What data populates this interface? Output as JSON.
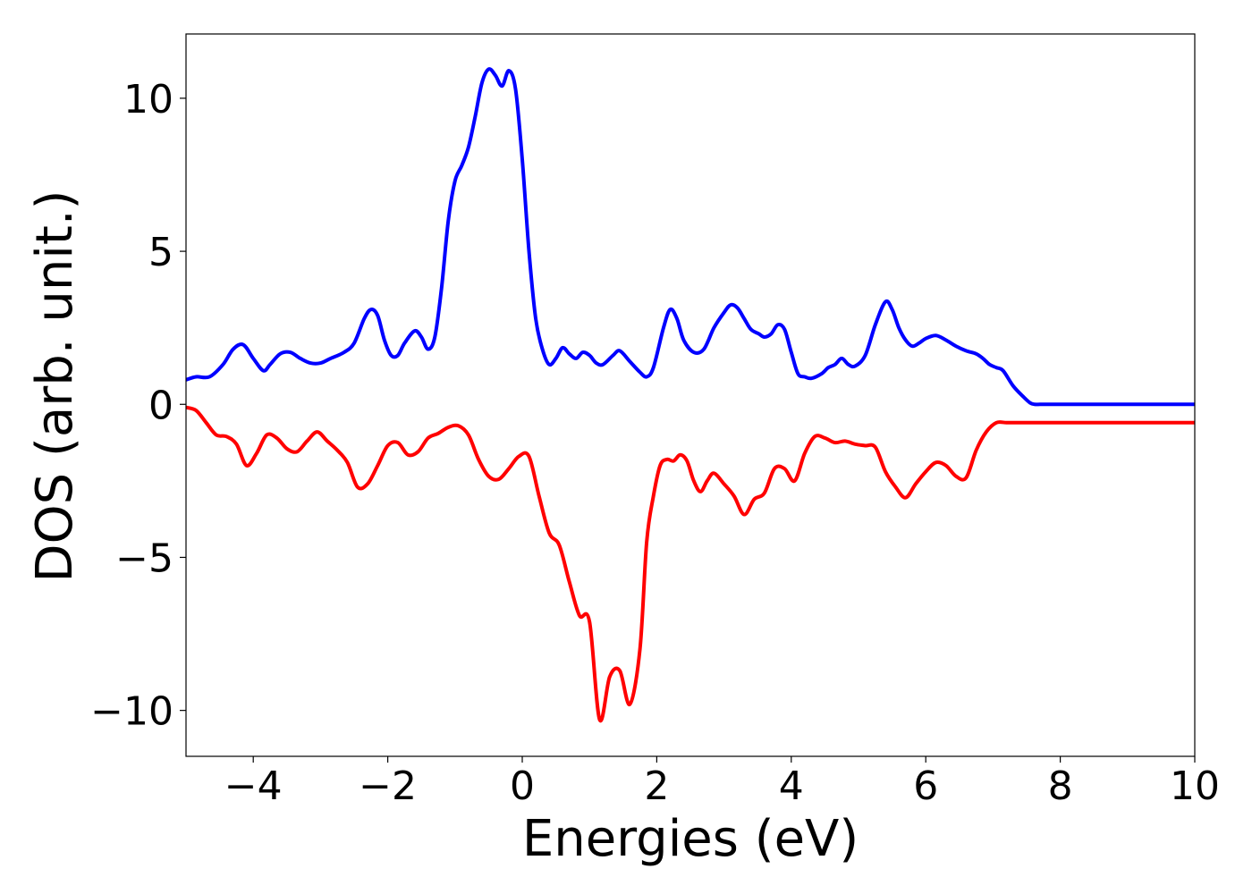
{
  "chart_data": {
    "type": "line",
    "title": "",
    "xlabel": "Energies (eV)",
    "ylabel": "DOS (arb. unit.)",
    "xlim": [
      -5,
      10
    ],
    "ylim": [
      -11.5,
      12.1
    ],
    "grid": false,
    "legend": "none",
    "xticks": [
      -4,
      -2,
      0,
      2,
      4,
      6,
      8,
      10
    ],
    "xtick_labels": [
      "−4",
      "−2",
      "0",
      "2",
      "4",
      "6",
      "8",
      "10"
    ],
    "yticks": [
      -10,
      -5,
      0,
      5,
      10
    ],
    "ytick_labels": [
      "−10",
      "−5",
      "0",
      "5",
      "10"
    ],
    "series": [
      {
        "color": "#0000ff",
        "x": [
          -5.0,
          -4.85,
          -4.65,
          -4.45,
          -4.3,
          -4.15,
          -4.0,
          -3.85,
          -3.75,
          -3.6,
          -3.45,
          -3.3,
          -3.15,
          -3.0,
          -2.85,
          -2.65,
          -2.5,
          -2.35,
          -2.25,
          -2.15,
          -2.05,
          -1.95,
          -1.85,
          -1.75,
          -1.6,
          -1.5,
          -1.4,
          -1.3,
          -1.2,
          -1.1,
          -1.0,
          -0.9,
          -0.8,
          -0.7,
          -0.6,
          -0.5,
          -0.4,
          -0.3,
          -0.2,
          -0.1,
          0.0,
          0.1,
          0.2,
          0.3,
          0.4,
          0.5,
          0.6,
          0.7,
          0.8,
          0.9,
          1.0,
          1.1,
          1.2,
          1.35,
          1.45,
          1.6,
          1.75,
          1.85,
          1.95,
          2.1,
          2.2,
          2.3,
          2.4,
          2.55,
          2.7,
          2.85,
          3.0,
          3.1,
          3.2,
          3.3,
          3.4,
          3.52,
          3.6,
          3.7,
          3.8,
          3.9,
          4.0,
          4.1,
          4.2,
          4.3,
          4.45,
          4.55,
          4.65,
          4.75,
          4.85,
          4.95,
          5.1,
          5.25,
          5.4,
          5.5,
          5.6,
          5.7,
          5.8,
          5.9,
          6.0,
          6.15,
          6.3,
          6.45,
          6.6,
          6.75,
          6.85,
          6.95,
          7.05,
          7.15,
          7.3,
          7.45,
          7.55,
          7.62,
          7.7,
          7.8,
          7.9,
          8.0,
          8.1,
          8.25,
          8.4,
          8.55,
          8.7,
          8.85,
          9.0,
          9.15,
          9.3,
          9.45,
          9.6,
          9.75,
          9.9,
          10.0
        ],
        "y": [
          0.8,
          0.9,
          0.9,
          1.3,
          1.8,
          1.95,
          1.5,
          1.1,
          1.3,
          1.65,
          1.7,
          1.5,
          1.35,
          1.35,
          1.5,
          1.7,
          2.0,
          2.8,
          3.1,
          2.9,
          2.1,
          1.6,
          1.6,
          2.0,
          2.4,
          2.2,
          1.8,
          2.2,
          3.8,
          6.0,
          7.3,
          7.8,
          8.4,
          9.4,
          10.5,
          10.95,
          10.75,
          10.4,
          10.9,
          10.3,
          8.0,
          5.0,
          2.8,
          1.8,
          1.3,
          1.5,
          1.85,
          1.65,
          1.5,
          1.7,
          1.6,
          1.35,
          1.3,
          1.6,
          1.75,
          1.4,
          1.05,
          0.9,
          1.2,
          2.5,
          3.1,
          2.8,
          2.1,
          1.7,
          1.8,
          2.5,
          3.0,
          3.25,
          3.15,
          2.8,
          2.45,
          2.3,
          2.2,
          2.3,
          2.6,
          2.45,
          1.7,
          1.0,
          0.9,
          0.85,
          1.0,
          1.2,
          1.3,
          1.5,
          1.3,
          1.25,
          1.6,
          2.6,
          3.35,
          3.1,
          2.5,
          2.1,
          1.9,
          2.0,
          2.15,
          2.25,
          2.1,
          1.9,
          1.75,
          1.65,
          1.5,
          1.3,
          1.2,
          1.1,
          0.6,
          0.25,
          0.05,
          0.0,
          0.0,
          0.0,
          0.0,
          0.0,
          0.0,
          0.0,
          0.0,
          0.0,
          0.0,
          0.0,
          0.0,
          0.0,
          0.0,
          0.0,
          0.0,
          0.0,
          0.0,
          0.0
        ]
      },
      {
        "color": "#ff0000",
        "x": [
          -5.0,
          -4.85,
          -4.7,
          -4.55,
          -4.4,
          -4.25,
          -4.1,
          -3.95,
          -3.8,
          -3.65,
          -3.5,
          -3.35,
          -3.2,
          -3.05,
          -2.9,
          -2.75,
          -2.6,
          -2.45,
          -2.3,
          -2.15,
          -2.0,
          -1.85,
          -1.7,
          -1.55,
          -1.4,
          -1.25,
          -1.1,
          -0.95,
          -0.8,
          -0.65,
          -0.5,
          -0.35,
          -0.2,
          -0.05,
          0.1,
          0.25,
          0.4,
          0.55,
          0.7,
          0.85,
          1.0,
          1.15,
          1.3,
          1.45,
          1.6,
          1.75,
          1.85,
          1.95,
          2.05,
          2.15,
          2.25,
          2.35,
          2.45,
          2.55,
          2.65,
          2.75,
          2.85,
          3.0,
          3.15,
          3.3,
          3.45,
          3.6,
          3.75,
          3.9,
          4.05,
          4.2,
          4.35,
          4.5,
          4.65,
          4.8,
          4.95,
          5.1,
          5.25,
          5.4,
          5.55,
          5.7,
          5.85,
          6.0,
          6.15,
          6.3,
          6.45,
          6.6,
          6.75,
          6.9,
          7.05,
          7.2,
          7.35,
          7.5,
          7.65,
          7.8,
          7.95,
          8.1,
          8.25,
          8.4,
          8.55,
          8.7,
          8.85,
          9.0,
          9.15,
          9.3,
          9.45,
          9.6,
          9.75,
          9.9,
          10.0
        ],
        "y": [
          -0.1,
          -0.2,
          -0.6,
          -1.0,
          -1.05,
          -1.3,
          -2.0,
          -1.6,
          -1.0,
          -1.1,
          -1.45,
          -1.55,
          -1.2,
          -0.9,
          -1.2,
          -1.5,
          -1.9,
          -2.7,
          -2.6,
          -2.0,
          -1.35,
          -1.25,
          -1.65,
          -1.55,
          -1.1,
          -0.95,
          -0.75,
          -0.7,
          -1.0,
          -1.8,
          -2.35,
          -2.45,
          -2.1,
          -1.7,
          -1.7,
          -3.0,
          -4.2,
          -4.6,
          -5.8,
          -6.9,
          -7.1,
          -10.3,
          -8.9,
          -8.7,
          -9.8,
          -8.0,
          -4.5,
          -3.0,
          -2.0,
          -1.8,
          -1.85,
          -1.65,
          -1.85,
          -2.5,
          -2.85,
          -2.5,
          -2.25,
          -2.6,
          -3.0,
          -3.6,
          -3.1,
          -2.9,
          -2.1,
          -2.1,
          -2.5,
          -1.6,
          -1.05,
          -1.1,
          -1.25,
          -1.2,
          -1.3,
          -1.35,
          -1.4,
          -2.2,
          -2.7,
          -3.05,
          -2.6,
          -2.2,
          -1.9,
          -2.0,
          -2.35,
          -2.4,
          -1.5,
          -0.9,
          -0.6,
          -0.6,
          -0.6,
          -0.6,
          -0.6,
          -0.6,
          -0.6,
          -0.6,
          -0.6,
          -0.6,
          -0.6,
          -0.6,
          -0.6,
          -0.6,
          -0.6,
          -0.6,
          -0.6,
          -0.6,
          -0.6,
          -0.6,
          -0.6
        ]
      }
    ]
  }
}
